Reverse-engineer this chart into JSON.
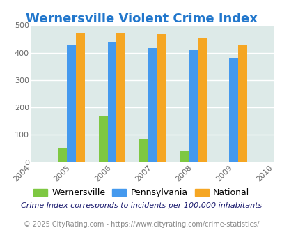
{
  "title": "Wernersville Violent Crime Index",
  "title_color": "#2277cc",
  "years": [
    2004,
    2005,
    2006,
    2007,
    2008,
    2009,
    2010
  ],
  "categories": [
    "Wernersville",
    "Pennsylvania",
    "National"
  ],
  "data": {
    "Wernersville": {
      "2005": 50,
      "2006": 170,
      "2007": 83,
      "2008": 43,
      "2009": 0
    },
    "Pennsylvania": {
      "2005": 426,
      "2006": 440,
      "2007": 418,
      "2008": 408,
      "2009": 380
    },
    "National": {
      "2005": 470,
      "2006": 473,
      "2007": 467,
      "2008": 453,
      "2009": 430
    }
  },
  "colors": {
    "Wernersville": "#7ec842",
    "Pennsylvania": "#4499ee",
    "National": "#f5a623"
  },
  "ylim": [
    0,
    500
  ],
  "yticks": [
    0,
    100,
    200,
    300,
    400,
    500
  ],
  "background_color": "#ddeae8",
  "outer_bg_color": "#ffffff",
  "grid_color": "#ffffff",
  "footnote": "Crime Index corresponds to incidents per 100,000 inhabitants",
  "copyright": "© 2025 CityRating.com - https://www.cityrating.com/crime-statistics/",
  "bar_width": 0.22,
  "title_fontsize": 13,
  "tick_fontsize": 8,
  "legend_fontsize": 9,
  "footnote_fontsize": 8,
  "copyright_fontsize": 7
}
